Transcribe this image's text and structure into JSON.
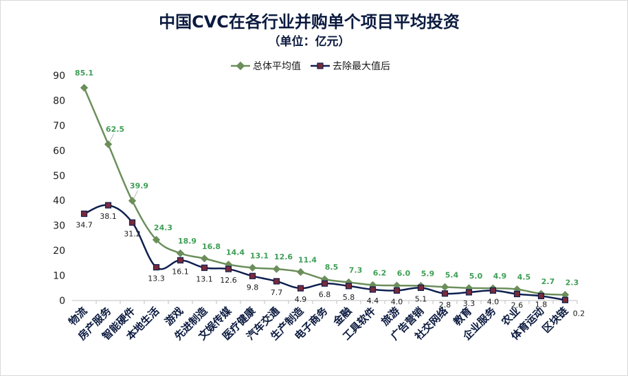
{
  "chart_data": {
    "type": "line",
    "title": "中国CVC在各行业并购单个项目平均投资",
    "subtitle": "（单位：亿元）",
    "categories": [
      "物流",
      "房产服务",
      "智能硬件",
      "本地生活",
      "游戏",
      "先进制造",
      "文娱传媒",
      "医疗健康",
      "汽车交通",
      "生产制造",
      "电子商务",
      "金融",
      "工具软件",
      "旅游",
      "广告营销",
      "社交网络",
      "教育",
      "企业服务",
      "农业",
      "体育运动",
      "区块链"
    ],
    "series": [
      {
        "name": "总体平均值",
        "values": [
          85.1,
          62.5,
          39.9,
          24.3,
          18.9,
          16.8,
          14.4,
          13.1,
          12.6,
          11.4,
          8.5,
          7.3,
          6.2,
          6.0,
          5.9,
          5.4,
          5.0,
          4.9,
          4.5,
          2.7,
          2.3
        ],
        "color": "#6b8e5a",
        "label_color": "#3e9e55"
      },
      {
        "name": "去除最大值后",
        "values": [
          34.7,
          38.1,
          31.2,
          13.3,
          16.1,
          13.1,
          12.6,
          9.8,
          7.7,
          4.9,
          6.8,
          5.8,
          4.4,
          4.0,
          5.1,
          2.8,
          3.3,
          4.0,
          2.6,
          1.8,
          0.2
        ],
        "color": "#0d1f4f",
        "marker_fill": "#7a2a3a",
        "label_color": "#1a1a1a"
      }
    ],
    "yticks": [
      "0",
      "10",
      "20",
      "30",
      "40",
      "50",
      "60",
      "70",
      "80",
      "90"
    ],
    "ylim": [
      0,
      90
    ],
    "grid": false,
    "legend_position": "top"
  }
}
